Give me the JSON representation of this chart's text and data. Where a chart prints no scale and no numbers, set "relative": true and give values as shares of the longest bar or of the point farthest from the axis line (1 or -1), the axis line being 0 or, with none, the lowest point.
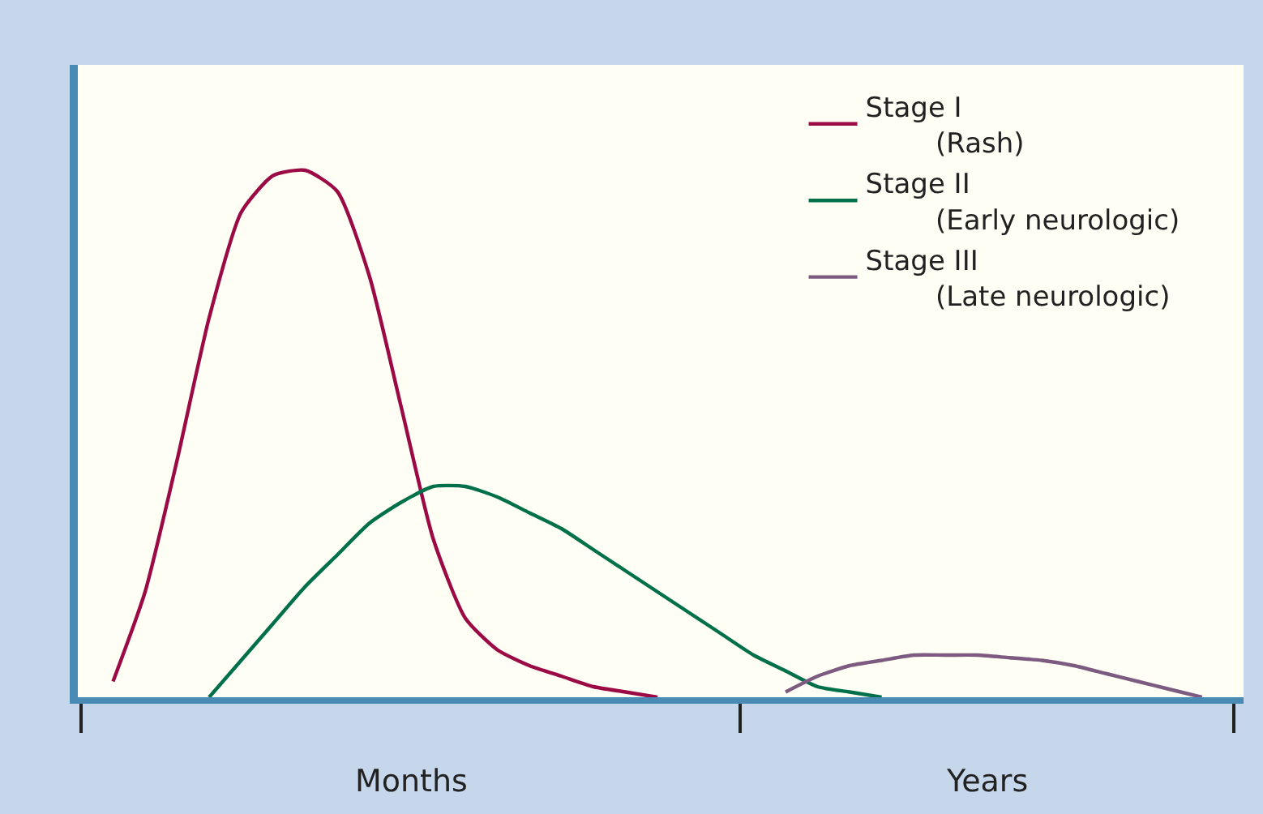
{
  "chart_data": {
    "type": "line",
    "relative": true,
    "grid": false,
    "legend": "top right",
    "marker": "none",
    "line_style": "solid",
    "categories": [
      null,
      null,
      null,
      null,
      null,
      null,
      null,
      null,
      null,
      null,
      null,
      null,
      null,
      null,
      null,
      null,
      null,
      null,
      null,
      null,
      null,
      null,
      null,
      null,
      null,
      null,
      null,
      null,
      null,
      null,
      null,
      null,
      null,
      null,
      null,
      null,
      null
    ],
    "series": [
      {
        "name": "Stage I\n(Rash)",
        "color": "#9b0a45",
        "values": [
          null,
          0.03,
          0.2,
          0.45,
          0.72,
          0.92,
          0.99,
          1.0,
          0.96,
          0.8,
          0.55,
          0.3,
          0.15,
          0.09,
          0.06,
          0.04,
          0.02,
          0.01,
          0.0,
          null,
          null,
          null,
          null,
          null,
          null,
          null,
          null,
          null,
          null,
          null,
          null,
          null,
          null,
          null,
          null,
          null,
          null
        ]
      },
      {
        "name": "Stage II\n(Early neurologic)",
        "color": "#00704a",
        "values": [
          null,
          null,
          null,
          null,
          0.0,
          0.07,
          0.14,
          0.21,
          0.27,
          0.33,
          0.37,
          0.4,
          0.4,
          0.38,
          0.35,
          0.32,
          0.28,
          0.24,
          0.2,
          0.16,
          0.12,
          0.08,
          0.05,
          0.02,
          0.01,
          0.0,
          null,
          null,
          null,
          null,
          null,
          null,
          null,
          null,
          null,
          null,
          null
        ]
      },
      {
        "name": "Stage III\n(Late neurologic)",
        "color": "#7d5a80",
        "values": [
          null,
          null,
          null,
          null,
          null,
          null,
          null,
          null,
          null,
          null,
          null,
          null,
          null,
          null,
          null,
          null,
          null,
          null,
          null,
          null,
          null,
          null,
          0.01,
          0.04,
          0.06,
          0.07,
          0.08,
          0.08,
          0.08,
          0.075,
          0.07,
          0.06,
          0.045,
          0.03,
          0.015,
          0.0,
          null
        ]
      }
    ],
    "annotations": [
      "Months",
      "Years"
    ]
  }
}
